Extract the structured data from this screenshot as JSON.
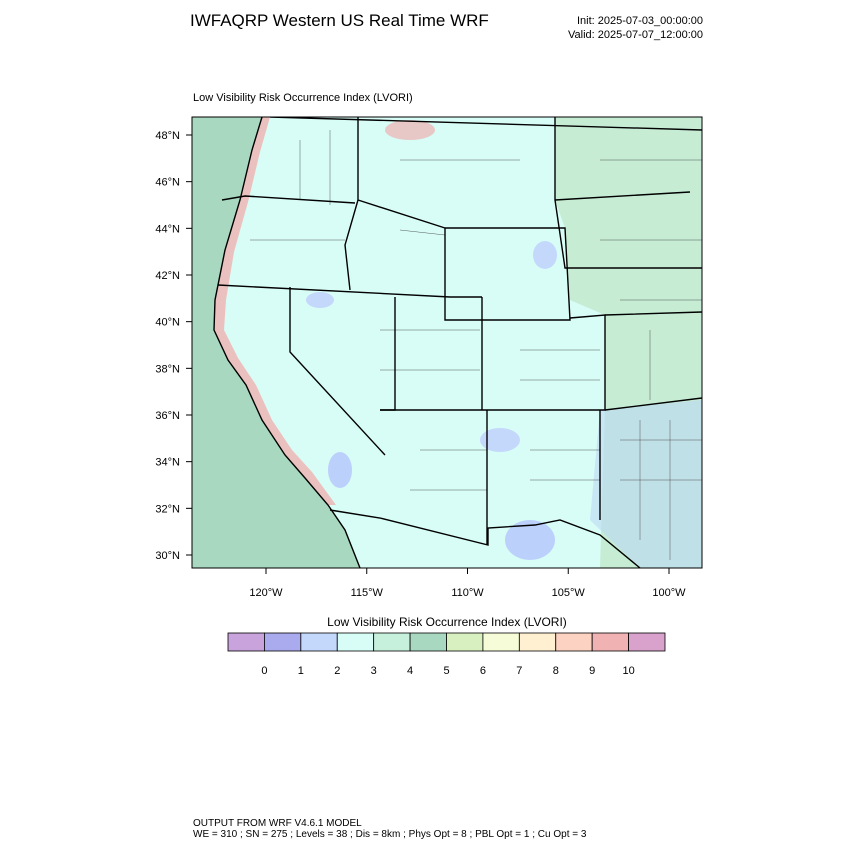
{
  "header": {
    "title": "IWFAQRP Western US Real Time WRF",
    "init": "Init: 2025-07-03_00:00:00",
    "valid": "Valid: 2025-07-07_12:00:00"
  },
  "map": {
    "subtitle": "Low Visibility Risk Occurrence Index   (LVORI)",
    "lat_labels": [
      "48°N",
      "46°N",
      "44°N",
      "42°N",
      "40°N",
      "38°N",
      "36°N",
      "34°N",
      "32°N",
      "30°N"
    ],
    "lon_labels": [
      "120°W",
      "115°W",
      "110°W",
      "105°W",
      "100°W"
    ]
  },
  "colorbar": {
    "title": "Low Visibility Risk Occurrence Index  (LVORI)",
    "colors": [
      "#c9a3dc",
      "#aaaaee",
      "#c4d8fc",
      "#d8fcf6",
      "#c6f0dc",
      "#a8d8c0",
      "#d8f0c0",
      "#f6fcd8",
      "#fff0d2",
      "#fcd2c2",
      "#f0b2b2",
      "#d8a2cc"
    ],
    "labels": [
      "0",
      "1",
      "2",
      "3",
      "4",
      "5",
      "6",
      "7",
      "8",
      "9",
      "10"
    ]
  },
  "footer": {
    "line1": "OUTPUT FROM WRF V4.6.1 MODEL",
    "line2": "WE = 310 ; SN = 275 ; Levels = 38 ; Dis = 8km ; Phys Opt = 8 ; PBL Opt = 1 ; Cu Opt = 3"
  }
}
